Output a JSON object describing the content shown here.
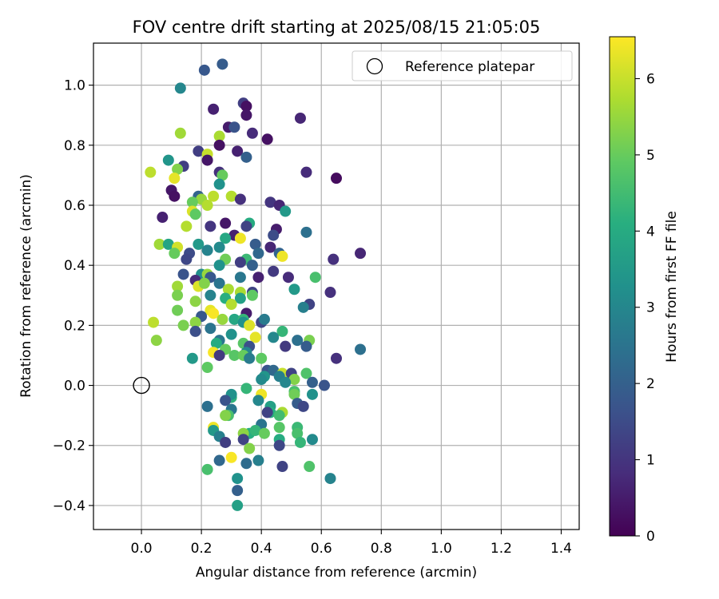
{
  "chart_data": {
    "type": "scatter",
    "title": "FOV centre drift starting at 2025/08/15 21:05:05",
    "xlabel": "Angular distance from reference (arcmin)",
    "ylabel": "Rotation from reference (arcmin)",
    "xlim": [
      -0.16,
      1.46
    ],
    "ylim": [
      -0.48,
      1.14
    ],
    "xticks": [
      0.0,
      0.2,
      0.4,
      0.6,
      0.8,
      1.0,
      1.2,
      1.4
    ],
    "xtick_labels": [
      "0.0",
      "0.2",
      "0.4",
      "0.6",
      "0.8",
      "1.0",
      "1.2",
      "1.4"
    ],
    "yticks": [
      -0.4,
      -0.2,
      0.0,
      0.2,
      0.4,
      0.6,
      0.8,
      1.0
    ],
    "ytick_labels": [
      "−0.4",
      "−0.2",
      "0.0",
      "0.2",
      "0.4",
      "0.6",
      "0.8",
      "1.0"
    ],
    "grid": true,
    "legend": {
      "placement": "top-right",
      "entries": [
        "Reference platepar"
      ]
    },
    "reference": {
      "x": 0.0,
      "y": 0.0
    },
    "colorbar": {
      "label": "Hours from first FF file",
      "range": [
        0,
        6.55
      ],
      "ticks": [
        0,
        1,
        2,
        3,
        4,
        5,
        6
      ],
      "tick_labels": [
        "0",
        "1",
        "2",
        "3",
        "4",
        "5",
        "6"
      ],
      "colormap": "viridis"
    },
    "points": [
      [
        0.21,
        1.05,
        1.8
      ],
      [
        0.27,
        1.07,
        1.9
      ],
      [
        0.13,
        0.99,
        3.0
      ],
      [
        0.34,
        0.94,
        1.2
      ],
      [
        0.35,
        0.93,
        0.3
      ],
      [
        0.24,
        0.92,
        0.6
      ],
      [
        0.35,
        0.9,
        0.4
      ],
      [
        0.53,
        0.89,
        0.7
      ],
      [
        0.29,
        0.86,
        0.5
      ],
      [
        0.31,
        0.86,
        1.7
      ],
      [
        0.37,
        0.84,
        0.8
      ],
      [
        0.13,
        0.84,
        5.6
      ],
      [
        0.26,
        0.83,
        5.7
      ],
      [
        0.42,
        0.82,
        0.3
      ],
      [
        0.26,
        0.8,
        0.3
      ],
      [
        0.32,
        0.78,
        0.6
      ],
      [
        0.19,
        0.78,
        1.2
      ],
      [
        0.22,
        0.77,
        6.0
      ],
      [
        0.35,
        0.76,
        2.0
      ],
      [
        0.09,
        0.75,
        3.4
      ],
      [
        0.22,
        0.75,
        0.4
      ],
      [
        0.14,
        0.73,
        1.2
      ],
      [
        0.03,
        0.71,
        5.9
      ],
      [
        0.12,
        0.72,
        5.3
      ],
      [
        0.26,
        0.71,
        0.9
      ],
      [
        0.55,
        0.71,
        0.8
      ],
      [
        0.27,
        0.7,
        5.0
      ],
      [
        0.65,
        0.69,
        0.2
      ],
      [
        0.11,
        0.69,
        6.3
      ],
      [
        0.26,
        0.67,
        3.3
      ],
      [
        0.1,
        0.65,
        0.4
      ],
      [
        0.19,
        0.63,
        2.1
      ],
      [
        0.11,
        0.63,
        0.3
      ],
      [
        0.24,
        0.63,
        5.9
      ],
      [
        0.3,
        0.63,
        5.8
      ],
      [
        0.2,
        0.62,
        5.5
      ],
      [
        0.33,
        0.62,
        0.9
      ],
      [
        0.17,
        0.61,
        5.0
      ],
      [
        0.43,
        0.61,
        1.0
      ],
      [
        0.46,
        0.6,
        0.7
      ],
      [
        0.22,
        0.6,
        5.8
      ],
      [
        0.17,
        0.58,
        6.2
      ],
      [
        0.48,
        0.58,
        3.5
      ],
      [
        0.18,
        0.57,
        4.9
      ],
      [
        0.07,
        0.56,
        0.6
      ],
      [
        0.28,
        0.54,
        0.4
      ],
      [
        0.23,
        0.53,
        1.0
      ],
      [
        0.36,
        0.54,
        4.0
      ],
      [
        0.15,
        0.53,
        5.8
      ],
      [
        0.35,
        0.53,
        1.3
      ],
      [
        0.45,
        0.52,
        0.5
      ],
      [
        0.55,
        0.51,
        2.4
      ],
      [
        0.31,
        0.5,
        0.6
      ],
      [
        0.44,
        0.5,
        1.5
      ],
      [
        0.33,
        0.49,
        6.4
      ],
      [
        0.28,
        0.49,
        3.9
      ],
      [
        0.06,
        0.47,
        5.6
      ],
      [
        0.09,
        0.47,
        3.8
      ],
      [
        0.19,
        0.47,
        3.5
      ],
      [
        0.38,
        0.47,
        1.9
      ],
      [
        0.12,
        0.46,
        6.1
      ],
      [
        0.26,
        0.46,
        3.1
      ],
      [
        0.43,
        0.46,
        0.7
      ],
      [
        0.11,
        0.44,
        5.0
      ],
      [
        0.22,
        0.45,
        2.9
      ],
      [
        0.16,
        0.44,
        1.5
      ],
      [
        0.39,
        0.44,
        2.2
      ],
      [
        0.46,
        0.44,
        2.1
      ],
      [
        0.73,
        0.44,
        0.7
      ],
      [
        0.47,
        0.43,
        6.4
      ],
      [
        0.15,
        0.42,
        1.4
      ],
      [
        0.28,
        0.42,
        5.1
      ],
      [
        0.35,
        0.42,
        4.4
      ],
      [
        0.64,
        0.42,
        0.9
      ],
      [
        0.26,
        0.4,
        3.3
      ],
      [
        0.33,
        0.41,
        1.2
      ],
      [
        0.37,
        0.4,
        2.0
      ],
      [
        0.44,
        0.38,
        1.1
      ],
      [
        0.2,
        0.37,
        3.2
      ],
      [
        0.22,
        0.37,
        5.5
      ],
      [
        0.23,
        0.36,
        1.8
      ],
      [
        0.14,
        0.37,
        1.7
      ],
      [
        0.18,
        0.35,
        0.8
      ],
      [
        0.33,
        0.36,
        2.6
      ],
      [
        0.39,
        0.36,
        0.6
      ],
      [
        0.58,
        0.36,
        4.6
      ],
      [
        0.49,
        0.36,
        0.8
      ],
      [
        0.26,
        0.34,
        2.5
      ],
      [
        0.12,
        0.33,
        5.6
      ],
      [
        0.19,
        0.33,
        6.2
      ],
      [
        0.21,
        0.34,
        5.3
      ],
      [
        0.33,
        0.31,
        5.7
      ],
      [
        0.29,
        0.32,
        5.7
      ],
      [
        0.51,
        0.32,
        3.5
      ],
      [
        0.63,
        0.31,
        0.9
      ],
      [
        0.37,
        0.31,
        1.3
      ],
      [
        0.23,
        0.3,
        2.9
      ],
      [
        0.12,
        0.3,
        5.2
      ],
      [
        0.37,
        0.3,
        4.9
      ],
      [
        0.28,
        0.29,
        4.1
      ],
      [
        0.33,
        0.29,
        3.7
      ],
      [
        0.18,
        0.28,
        5.4
      ],
      [
        0.3,
        0.27,
        5.8
      ],
      [
        0.56,
        0.27,
        1.3
      ],
      [
        0.12,
        0.25,
        5.1
      ],
      [
        0.23,
        0.25,
        6.3
      ],
      [
        0.54,
        0.26,
        2.8
      ],
      [
        0.24,
        0.24,
        6.5
      ],
      [
        0.35,
        0.24,
        0.5
      ],
      [
        0.2,
        0.23,
        1.8
      ],
      [
        0.31,
        0.22,
        3.9
      ],
      [
        0.27,
        0.22,
        5.5
      ],
      [
        0.34,
        0.22,
        4.3
      ],
      [
        0.4,
        0.21,
        1.4
      ],
      [
        0.41,
        0.22,
        2.7
      ],
      [
        0.04,
        0.21,
        5.9
      ],
      [
        0.18,
        0.21,
        5.4
      ],
      [
        0.14,
        0.2,
        5.2
      ],
      [
        0.34,
        0.21,
        3.3
      ],
      [
        0.36,
        0.2,
        6.2
      ],
      [
        0.23,
        0.19,
        2.5
      ],
      [
        0.18,
        0.18,
        1.6
      ],
      [
        0.3,
        0.17,
        3.3
      ],
      [
        0.47,
        0.18,
        4.3
      ],
      [
        0.38,
        0.16,
        6.3
      ],
      [
        0.05,
        0.15,
        5.4
      ],
      [
        0.26,
        0.15,
        2.6
      ],
      [
        0.44,
        0.16,
        3.0
      ],
      [
        0.52,
        0.15,
        2.4
      ],
      [
        0.56,
        0.15,
        5.2
      ],
      [
        0.25,
        0.14,
        4.0
      ],
      [
        0.34,
        0.14,
        4.8
      ],
      [
        0.36,
        0.13,
        1.6
      ],
      [
        0.48,
        0.13,
        1.1
      ],
      [
        0.55,
        0.13,
        1.9
      ],
      [
        0.28,
        0.12,
        5.0
      ],
      [
        0.24,
        0.11,
        6.5
      ],
      [
        0.35,
        0.11,
        3.0
      ],
      [
        0.73,
        0.12,
        2.4
      ],
      [
        0.26,
        0.1,
        1.1
      ],
      [
        0.31,
        0.1,
        4.8
      ],
      [
        0.34,
        0.1,
        5.0
      ],
      [
        0.36,
        0.09,
        2.7
      ],
      [
        0.4,
        0.09,
        4.9
      ],
      [
        0.65,
        0.09,
        0.9
      ],
      [
        0.17,
        0.09,
        3.5
      ],
      [
        0.22,
        0.06,
        4.9
      ],
      [
        0.42,
        0.05,
        1.7
      ],
      [
        0.44,
        0.05,
        2.2
      ],
      [
        0.47,
        0.04,
        6.0
      ],
      [
        0.5,
        0.04,
        1.3
      ],
      [
        0.55,
        0.04,
        4.7
      ],
      [
        0.46,
        0.03,
        2.8
      ],
      [
        0.41,
        0.03,
        3.4
      ],
      [
        0.4,
        0.02,
        3.1
      ],
      [
        0.51,
        0.02,
        5.3
      ],
      [
        0.57,
        0.01,
        2.0
      ],
      [
        0.61,
        0.0,
        1.7
      ],
      [
        0.35,
        -0.01,
        4.3
      ],
      [
        0.48,
        0.01,
        3.0
      ],
      [
        0.51,
        -0.02,
        4.6
      ],
      [
        0.51,
        -0.03,
        5.1
      ],
      [
        0.57,
        -0.03,
        3.3
      ],
      [
        0.4,
        -0.03,
        6.4
      ],
      [
        0.3,
        -0.04,
        4.2
      ],
      [
        0.3,
        -0.03,
        3.3
      ],
      [
        0.28,
        -0.05,
        1.7
      ],
      [
        0.39,
        -0.05,
        3.0
      ],
      [
        0.52,
        -0.06,
        1.9
      ],
      [
        0.43,
        -0.07,
        3.7
      ],
      [
        0.54,
        -0.07,
        1.4
      ],
      [
        0.22,
        -0.07,
        2.4
      ],
      [
        0.3,
        -0.08,
        2.6
      ],
      [
        0.43,
        -0.09,
        4.1
      ],
      [
        0.42,
        -0.09,
        1.3
      ],
      [
        0.47,
        -0.09,
        5.7
      ],
      [
        0.46,
        -0.1,
        4.5
      ],
      [
        0.29,
        -0.1,
        4.6
      ],
      [
        0.28,
        -0.1,
        5.3
      ],
      [
        0.4,
        -0.13,
        2.5
      ],
      [
        0.52,
        -0.14,
        4.4
      ],
      [
        0.46,
        -0.14,
        4.8
      ],
      [
        0.24,
        -0.14,
        6.4
      ],
      [
        0.24,
        -0.15,
        3.5
      ],
      [
        0.36,
        -0.16,
        4.1
      ],
      [
        0.38,
        -0.15,
        4.3
      ],
      [
        0.26,
        -0.17,
        2.8
      ],
      [
        0.34,
        -0.16,
        5.4
      ],
      [
        0.41,
        -0.16,
        5.0
      ],
      [
        0.52,
        -0.16,
        4.6
      ],
      [
        0.28,
        -0.19,
        1.2
      ],
      [
        0.34,
        -0.18,
        1.3
      ],
      [
        0.46,
        -0.18,
        4.0
      ],
      [
        0.57,
        -0.18,
        3.1
      ],
      [
        0.53,
        -0.19,
        4.3
      ],
      [
        0.46,
        -0.2,
        1.4
      ],
      [
        0.36,
        -0.21,
        5.3
      ],
      [
        0.3,
        -0.24,
        6.5
      ],
      [
        0.26,
        -0.25,
        2.2
      ],
      [
        0.39,
        -0.25,
        2.8
      ],
      [
        0.35,
        -0.26,
        2.3
      ],
      [
        0.47,
        -0.27,
        1.3
      ],
      [
        0.56,
        -0.27,
        4.7
      ],
      [
        0.22,
        -0.28,
        4.6
      ],
      [
        0.32,
        -0.31,
        3.3
      ],
      [
        0.63,
        -0.31,
        2.9
      ],
      [
        0.32,
        -0.35,
        2.0
      ],
      [
        0.32,
        -0.4,
        3.7
      ]
    ]
  }
}
